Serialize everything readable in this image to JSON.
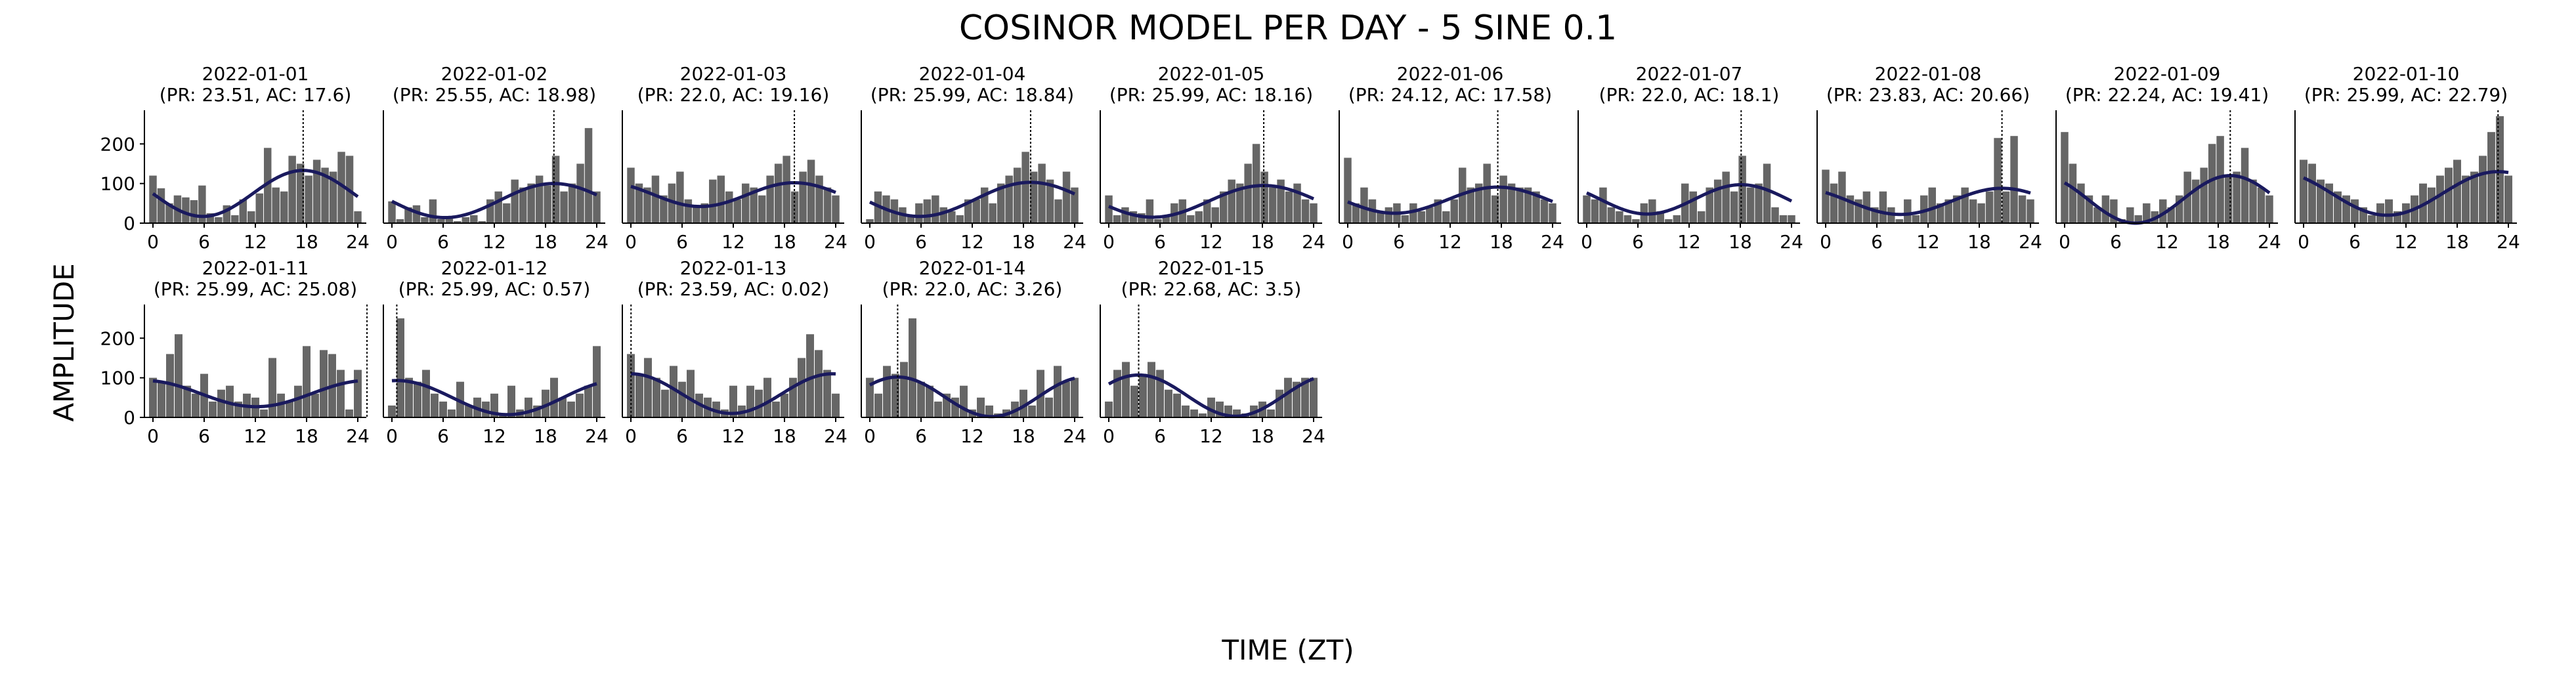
{
  "chart_data": {
    "type": "bar",
    "title": "COSINOR MODEL PER DAY - 5 SINE 0.1",
    "xlabel": "TIME (ZT)",
    "ylabel": "AMPLITUDE",
    "x_ticks": [
      0,
      6,
      12,
      18,
      24
    ],
    "y_ticks": [
      0,
      100,
      200
    ],
    "xlim": [
      -1,
      25
    ],
    "ylim": [
      0,
      285
    ],
    "colors": {
      "bar": "#666666",
      "fit": "#1a1a5e",
      "acrophase_line": "#000000"
    },
    "panels": [
      {
        "title": "2022-01-01",
        "subtitle": "(PR: 23.51, AC: 17.6)",
        "period": 23.51,
        "acrophase": 17.6,
        "mesor": 75,
        "amplitude": 58,
        "values": [
          120,
          88,
          50,
          70,
          65,
          58,
          95,
          25,
          15,
          45,
          20,
          60,
          30,
          75,
          190,
          90,
          80,
          170,
          150,
          120,
          160,
          140,
          130,
          180,
          170,
          30
        ]
      },
      {
        "title": "2022-01-02",
        "subtitle": "(PR: 25.55, AC: 18.98)",
        "period": 25.55,
        "acrophase": 18.98,
        "mesor": 57,
        "amplitude": 43,
        "values": [
          55,
          10,
          40,
          45,
          15,
          60,
          10,
          15,
          5,
          15,
          20,
          5,
          60,
          80,
          50,
          110,
          90,
          100,
          120,
          95,
          170,
          80,
          100,
          150,
          240,
          80
        ]
      },
      {
        "title": "2022-01-03",
        "subtitle": "(PR: 22.0, AC: 19.16)",
        "period": 22.0,
        "acrophase": 19.16,
        "mesor": 72,
        "amplitude": 30,
        "values": [
          140,
          100,
          90,
          120,
          70,
          100,
          130,
          60,
          40,
          50,
          110,
          120,
          80,
          60,
          100,
          90,
          70,
          120,
          150,
          170,
          80,
          130,
          160,
          120,
          90,
          70
        ]
      },
      {
        "title": "2022-01-04",
        "subtitle": "(PR: 25.99, AC: 18.84)",
        "period": 25.99,
        "acrophase": 18.84,
        "mesor": 60,
        "amplitude": 43,
        "values": [
          10,
          80,
          70,
          60,
          40,
          20,
          50,
          60,
          70,
          40,
          30,
          20,
          60,
          60,
          90,
          50,
          100,
          120,
          140,
          180,
          130,
          150,
          110,
          60,
          130,
          90
        ]
      },
      {
        "title": "2022-01-05",
        "subtitle": "(PR: 25.99, AC: 18.16)",
        "period": 25.99,
        "acrophase": 18.16,
        "mesor": 55,
        "amplitude": 40,
        "values": [
          70,
          20,
          40,
          30,
          25,
          60,
          10,
          20,
          50,
          60,
          20,
          30,
          60,
          40,
          80,
          110,
          100,
          150,
          200,
          130,
          90,
          110,
          80,
          100,
          60,
          50
        ]
      },
      {
        "title": "2022-01-06",
        "subtitle": "(PR: 24.12, AC: 17.58)",
        "period": 24.12,
        "acrophase": 17.58,
        "mesor": 58,
        "amplitude": 33,
        "values": [
          165,
          50,
          90,
          60,
          30,
          40,
          50,
          20,
          50,
          30,
          40,
          60,
          30,
          60,
          140,
          90,
          100,
          150,
          70,
          120,
          100,
          90,
          90,
          80,
          60,
          50
        ]
      },
      {
        "title": "2022-01-07",
        "subtitle": "(PR: 22.0, AC: 18.1)",
        "period": 22.0,
        "acrophase": 18.1,
        "mesor": 60,
        "amplitude": 37,
        "values": [
          70,
          60,
          90,
          40,
          30,
          20,
          10,
          50,
          60,
          30,
          10,
          20,
          100,
          80,
          30,
          90,
          110,
          130,
          80,
          170,
          90,
          100,
          150,
          40,
          20,
          20
        ]
      },
      {
        "title": "2022-01-08",
        "subtitle": "(PR: 23.83, AC: 20.66)",
        "period": 23.83,
        "acrophase": 20.66,
        "mesor": 55,
        "amplitude": 33,
        "values": [
          135,
          100,
          130,
          70,
          60,
          80,
          40,
          80,
          40,
          10,
          60,
          20,
          70,
          90,
          50,
          60,
          70,
          90,
          60,
          50,
          80,
          215,
          80,
          220,
          70,
          60
        ]
      },
      {
        "title": "2022-01-09",
        "subtitle": "(PR: 22.24, AC: 19.41)",
        "period": 22.24,
        "acrophase": 19.41,
        "mesor": 60,
        "amplitude": 60,
        "values": [
          230,
          150,
          100,
          70,
          40,
          70,
          60,
          10,
          40,
          20,
          50,
          30,
          60,
          40,
          70,
          130,
          110,
          140,
          200,
          220,
          120,
          130,
          190,
          110,
          90,
          70
        ]
      },
      {
        "title": "2022-01-10",
        "subtitle": "(PR: 25.99, AC: 22.79)",
        "period": 25.99,
        "acrophase": 22.79,
        "mesor": 75,
        "amplitude": 55,
        "values": [
          160,
          150,
          110,
          100,
          80,
          70,
          60,
          40,
          20,
          50,
          60,
          30,
          50,
          70,
          100,
          90,
          120,
          140,
          160,
          120,
          130,
          170,
          230,
          270,
          120
        ]
      },
      {
        "title": "2022-01-11",
        "subtitle": "(PR: 25.99, AC: 25.08)",
        "period": 25.99,
        "acrophase": 25.08,
        "mesor": 60,
        "amplitude": 33,
        "values": [
          100,
          90,
          160,
          210,
          80,
          60,
          110,
          40,
          70,
          80,
          40,
          60,
          50,
          20,
          150,
          60,
          40,
          80,
          180,
          60,
          170,
          160,
          120,
          20,
          120
        ]
      },
      {
        "title": "2022-01-12",
        "subtitle": "(PR: 25.99, AC: 0.57)",
        "period": 25.99,
        "acrophase": 0.57,
        "mesor": 50,
        "amplitude": 43,
        "values": [
          30,
          250,
          100,
          90,
          120,
          60,
          40,
          20,
          90,
          30,
          50,
          40,
          60,
          10,
          80,
          20,
          50,
          30,
          70,
          100,
          50,
          40,
          60,
          80,
          180
        ]
      },
      {
        "title": "2022-01-13",
        "subtitle": "(PR: 23.59, AC: 0.02)",
        "period": 23.59,
        "acrophase": 0.02,
        "mesor": 60,
        "amplitude": 50,
        "values": [
          160,
          110,
          150,
          100,
          70,
          130,
          90,
          120,
          60,
          50,
          40,
          20,
          80,
          30,
          80,
          70,
          100,
          40,
          60,
          100,
          150,
          210,
          170,
          120,
          60
        ]
      },
      {
        "title": "2022-01-14",
        "subtitle": "(PR: 22.0, AC: 3.26)",
        "period": 22.0,
        "acrophase": 3.26,
        "mesor": 52,
        "amplitude": 50,
        "values": [
          100,
          60,
          130,
          110,
          140,
          250,
          90,
          80,
          40,
          60,
          50,
          80,
          20,
          50,
          30,
          10,
          20,
          40,
          70,
          30,
          120,
          50,
          130,
          90,
          100
        ]
      },
      {
        "title": "2022-01-15",
        "subtitle": "(PR: 22.68, AC: 3.5)",
        "period": 22.68,
        "acrophase": 3.5,
        "mesor": 55,
        "amplitude": 52,
        "values": [
          40,
          120,
          140,
          80,
          110,
          140,
          120,
          70,
          60,
          30,
          20,
          10,
          50,
          40,
          30,
          20,
          10,
          30,
          40,
          20,
          70,
          100,
          90,
          100,
          100
        ]
      }
    ]
  }
}
